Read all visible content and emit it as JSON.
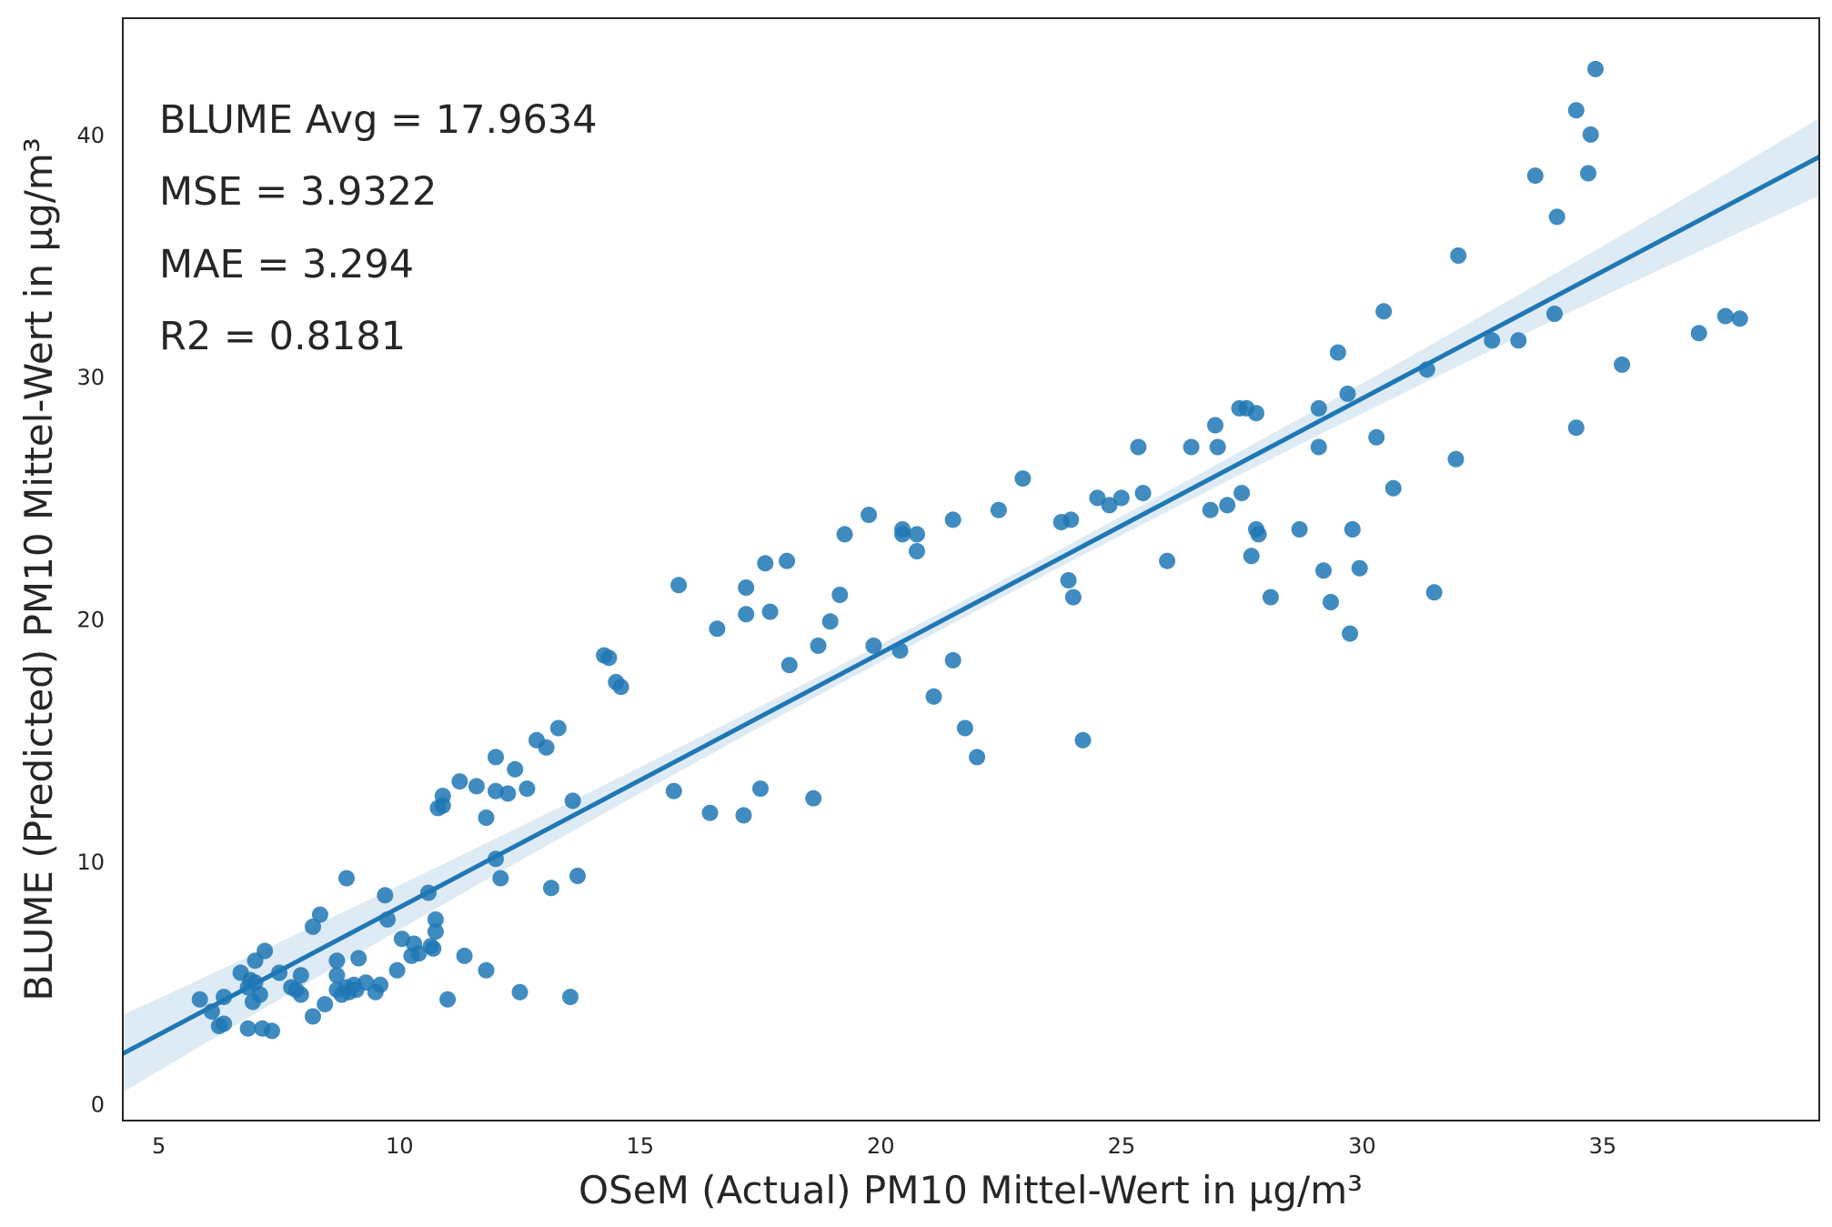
{
  "chart_data": {
    "type": "scatter",
    "title": "",
    "xlabel": "OSeM (Actual) PM10 Mittel-Wert in µg/m³",
    "ylabel": "BLUME (Predicted) PM10 Mittel-Wert in µg/m³",
    "xlim": [
      4.25,
      39.5
    ],
    "ylim": [
      -0.7,
      44.8
    ],
    "xticks": [
      5,
      10,
      15,
      20,
      25,
      30,
      35
    ],
    "yticks": [
      0,
      10,
      20,
      30,
      40
    ],
    "grid": false,
    "annotations": [
      "BLUME Avg = 17.9634",
      "MSE = 3.9322",
      "MAE = 3.294",
      "R2 = 0.8181"
    ],
    "regression": {
      "slope": 1.05,
      "intercept": -2.4,
      "ci_halfwidth_edge": 1.6,
      "ci_halfwidth_center": 0.35
    },
    "points": [
      [
        5.85,
        4.3
      ],
      [
        6.1,
        3.8
      ],
      [
        6.25,
        3.2
      ],
      [
        6.35,
        3.3
      ],
      [
        6.35,
        4.4
      ],
      [
        6.7,
        5.4
      ],
      [
        6.85,
        4.8
      ],
      [
        6.85,
        3.1
      ],
      [
        6.9,
        5.1
      ],
      [
        6.95,
        4.2
      ],
      [
        7.0,
        5.0
      ],
      [
        7.0,
        5.9
      ],
      [
        7.1,
        4.5
      ],
      [
        7.15,
        3.1
      ],
      [
        7.2,
        6.3
      ],
      [
        7.35,
        3.0
      ],
      [
        7.5,
        5.4
      ],
      [
        7.75,
        4.8
      ],
      [
        7.85,
        4.7
      ],
      [
        7.95,
        5.3
      ],
      [
        7.95,
        4.5
      ],
      [
        8.2,
        3.6
      ],
      [
        8.2,
        7.3
      ],
      [
        8.35,
        7.8
      ],
      [
        8.45,
        4.1
      ],
      [
        8.7,
        5.9
      ],
      [
        8.7,
        5.3
      ],
      [
        8.7,
        4.7
      ],
      [
        8.8,
        4.5
      ],
      [
        8.9,
        4.8
      ],
      [
        8.9,
        9.3
      ],
      [
        8.95,
        4.6
      ],
      [
        9.05,
        4.9
      ],
      [
        9.1,
        4.7
      ],
      [
        9.15,
        6.0
      ],
      [
        9.3,
        5.0
      ],
      [
        9.5,
        4.6
      ],
      [
        9.6,
        4.9
      ],
      [
        9.7,
        8.6
      ],
      [
        9.75,
        7.6
      ],
      [
        9.95,
        5.5
      ],
      [
        10.05,
        6.8
      ],
      [
        10.25,
        6.1
      ],
      [
        10.3,
        6.6
      ],
      [
        10.4,
        6.2
      ],
      [
        10.6,
        8.7
      ],
      [
        10.65,
        6.5
      ],
      [
        10.7,
        6.4
      ],
      [
        10.75,
        7.6
      ],
      [
        10.75,
        7.1
      ],
      [
        10.8,
        12.2
      ],
      [
        10.9,
        12.7
      ],
      [
        10.9,
        12.3
      ],
      [
        11.0,
        4.3
      ],
      [
        11.25,
        13.3
      ],
      [
        11.35,
        6.1
      ],
      [
        11.6,
        13.1
      ],
      [
        11.8,
        11.8
      ],
      [
        11.8,
        5.5
      ],
      [
        12.0,
        14.3
      ],
      [
        12.0,
        12.9
      ],
      [
        12.0,
        10.1
      ],
      [
        12.1,
        9.3
      ],
      [
        12.25,
        12.8
      ],
      [
        12.4,
        13.8
      ],
      [
        12.5,
        4.6
      ],
      [
        12.65,
        13.0
      ],
      [
        12.85,
        15.0
      ],
      [
        13.05,
        14.7
      ],
      [
        13.15,
        8.9
      ],
      [
        13.3,
        15.5
      ],
      [
        13.55,
        4.4
      ],
      [
        13.6,
        12.5
      ],
      [
        13.7,
        9.4
      ],
      [
        14.25,
        18.5
      ],
      [
        14.35,
        18.4
      ],
      [
        14.5,
        17.4
      ],
      [
        14.6,
        17.2
      ],
      [
        15.7,
        12.9
      ],
      [
        15.8,
        21.4
      ],
      [
        16.45,
        12.0
      ],
      [
        16.6,
        19.6
      ],
      [
        17.15,
        11.9
      ],
      [
        17.2,
        21.3
      ],
      [
        17.2,
        20.2
      ],
      [
        17.5,
        13.0
      ],
      [
        17.6,
        22.3
      ],
      [
        17.7,
        20.3
      ],
      [
        18.05,
        22.4
      ],
      [
        18.1,
        18.1
      ],
      [
        18.6,
        12.6
      ],
      [
        18.7,
        18.9
      ],
      [
        18.95,
        19.9
      ],
      [
        19.15,
        21.0
      ],
      [
        19.25,
        23.5
      ],
      [
        19.75,
        24.3
      ],
      [
        19.85,
        18.9
      ],
      [
        20.4,
        18.7
      ],
      [
        20.45,
        23.5
      ],
      [
        20.45,
        23.7
      ],
      [
        20.75,
        23.5
      ],
      [
        20.75,
        22.8
      ],
      [
        21.1,
        16.8
      ],
      [
        21.5,
        24.1
      ],
      [
        21.5,
        18.3
      ],
      [
        21.75,
        15.5
      ],
      [
        22.0,
        14.3
      ],
      [
        22.45,
        24.5
      ],
      [
        22.95,
        25.8
      ],
      [
        23.75,
        24.0
      ],
      [
        23.9,
        21.6
      ],
      [
        23.95,
        24.1
      ],
      [
        24.0,
        20.9
      ],
      [
        24.2,
        15.0
      ],
      [
        24.5,
        25.0
      ],
      [
        24.75,
        24.7
      ],
      [
        25.0,
        25.0
      ],
      [
        25.35,
        27.1
      ],
      [
        25.45,
        25.2
      ],
      [
        25.95,
        22.4
      ],
      [
        26.45,
        27.1
      ],
      [
        26.85,
        24.5
      ],
      [
        26.95,
        28.0
      ],
      [
        27.0,
        27.1
      ],
      [
        27.2,
        24.7
      ],
      [
        27.45,
        28.7
      ],
      [
        27.5,
        25.2
      ],
      [
        27.6,
        28.7
      ],
      [
        27.7,
        22.6
      ],
      [
        27.8,
        28.5
      ],
      [
        27.8,
        23.7
      ],
      [
        27.85,
        23.5
      ],
      [
        28.1,
        20.9
      ],
      [
        28.7,
        23.7
      ],
      [
        29.1,
        27.1
      ],
      [
        29.1,
        28.7
      ],
      [
        29.2,
        22.0
      ],
      [
        29.35,
        20.7
      ],
      [
        29.5,
        31.0
      ],
      [
        29.7,
        29.3
      ],
      [
        29.75,
        19.4
      ],
      [
        29.8,
        23.7
      ],
      [
        29.95,
        22.1
      ],
      [
        30.3,
        27.5
      ],
      [
        30.45,
        32.7
      ],
      [
        30.65,
        25.4
      ],
      [
        31.35,
        30.3
      ],
      [
        31.5,
        21.1
      ],
      [
        31.95,
        26.6
      ],
      [
        32.0,
        35.0
      ],
      [
        32.7,
        31.5
      ],
      [
        33.25,
        31.5
      ],
      [
        33.6,
        38.3
      ],
      [
        34.0,
        32.6
      ],
      [
        34.05,
        36.6
      ],
      [
        34.45,
        41.0
      ],
      [
        34.45,
        27.9
      ],
      [
        34.7,
        38.4
      ],
      [
        34.75,
        40.0
      ],
      [
        34.85,
        42.7
      ],
      [
        35.4,
        30.5
      ],
      [
        37.0,
        31.8
      ],
      [
        37.55,
        32.5
      ],
      [
        37.85,
        32.4
      ]
    ]
  }
}
